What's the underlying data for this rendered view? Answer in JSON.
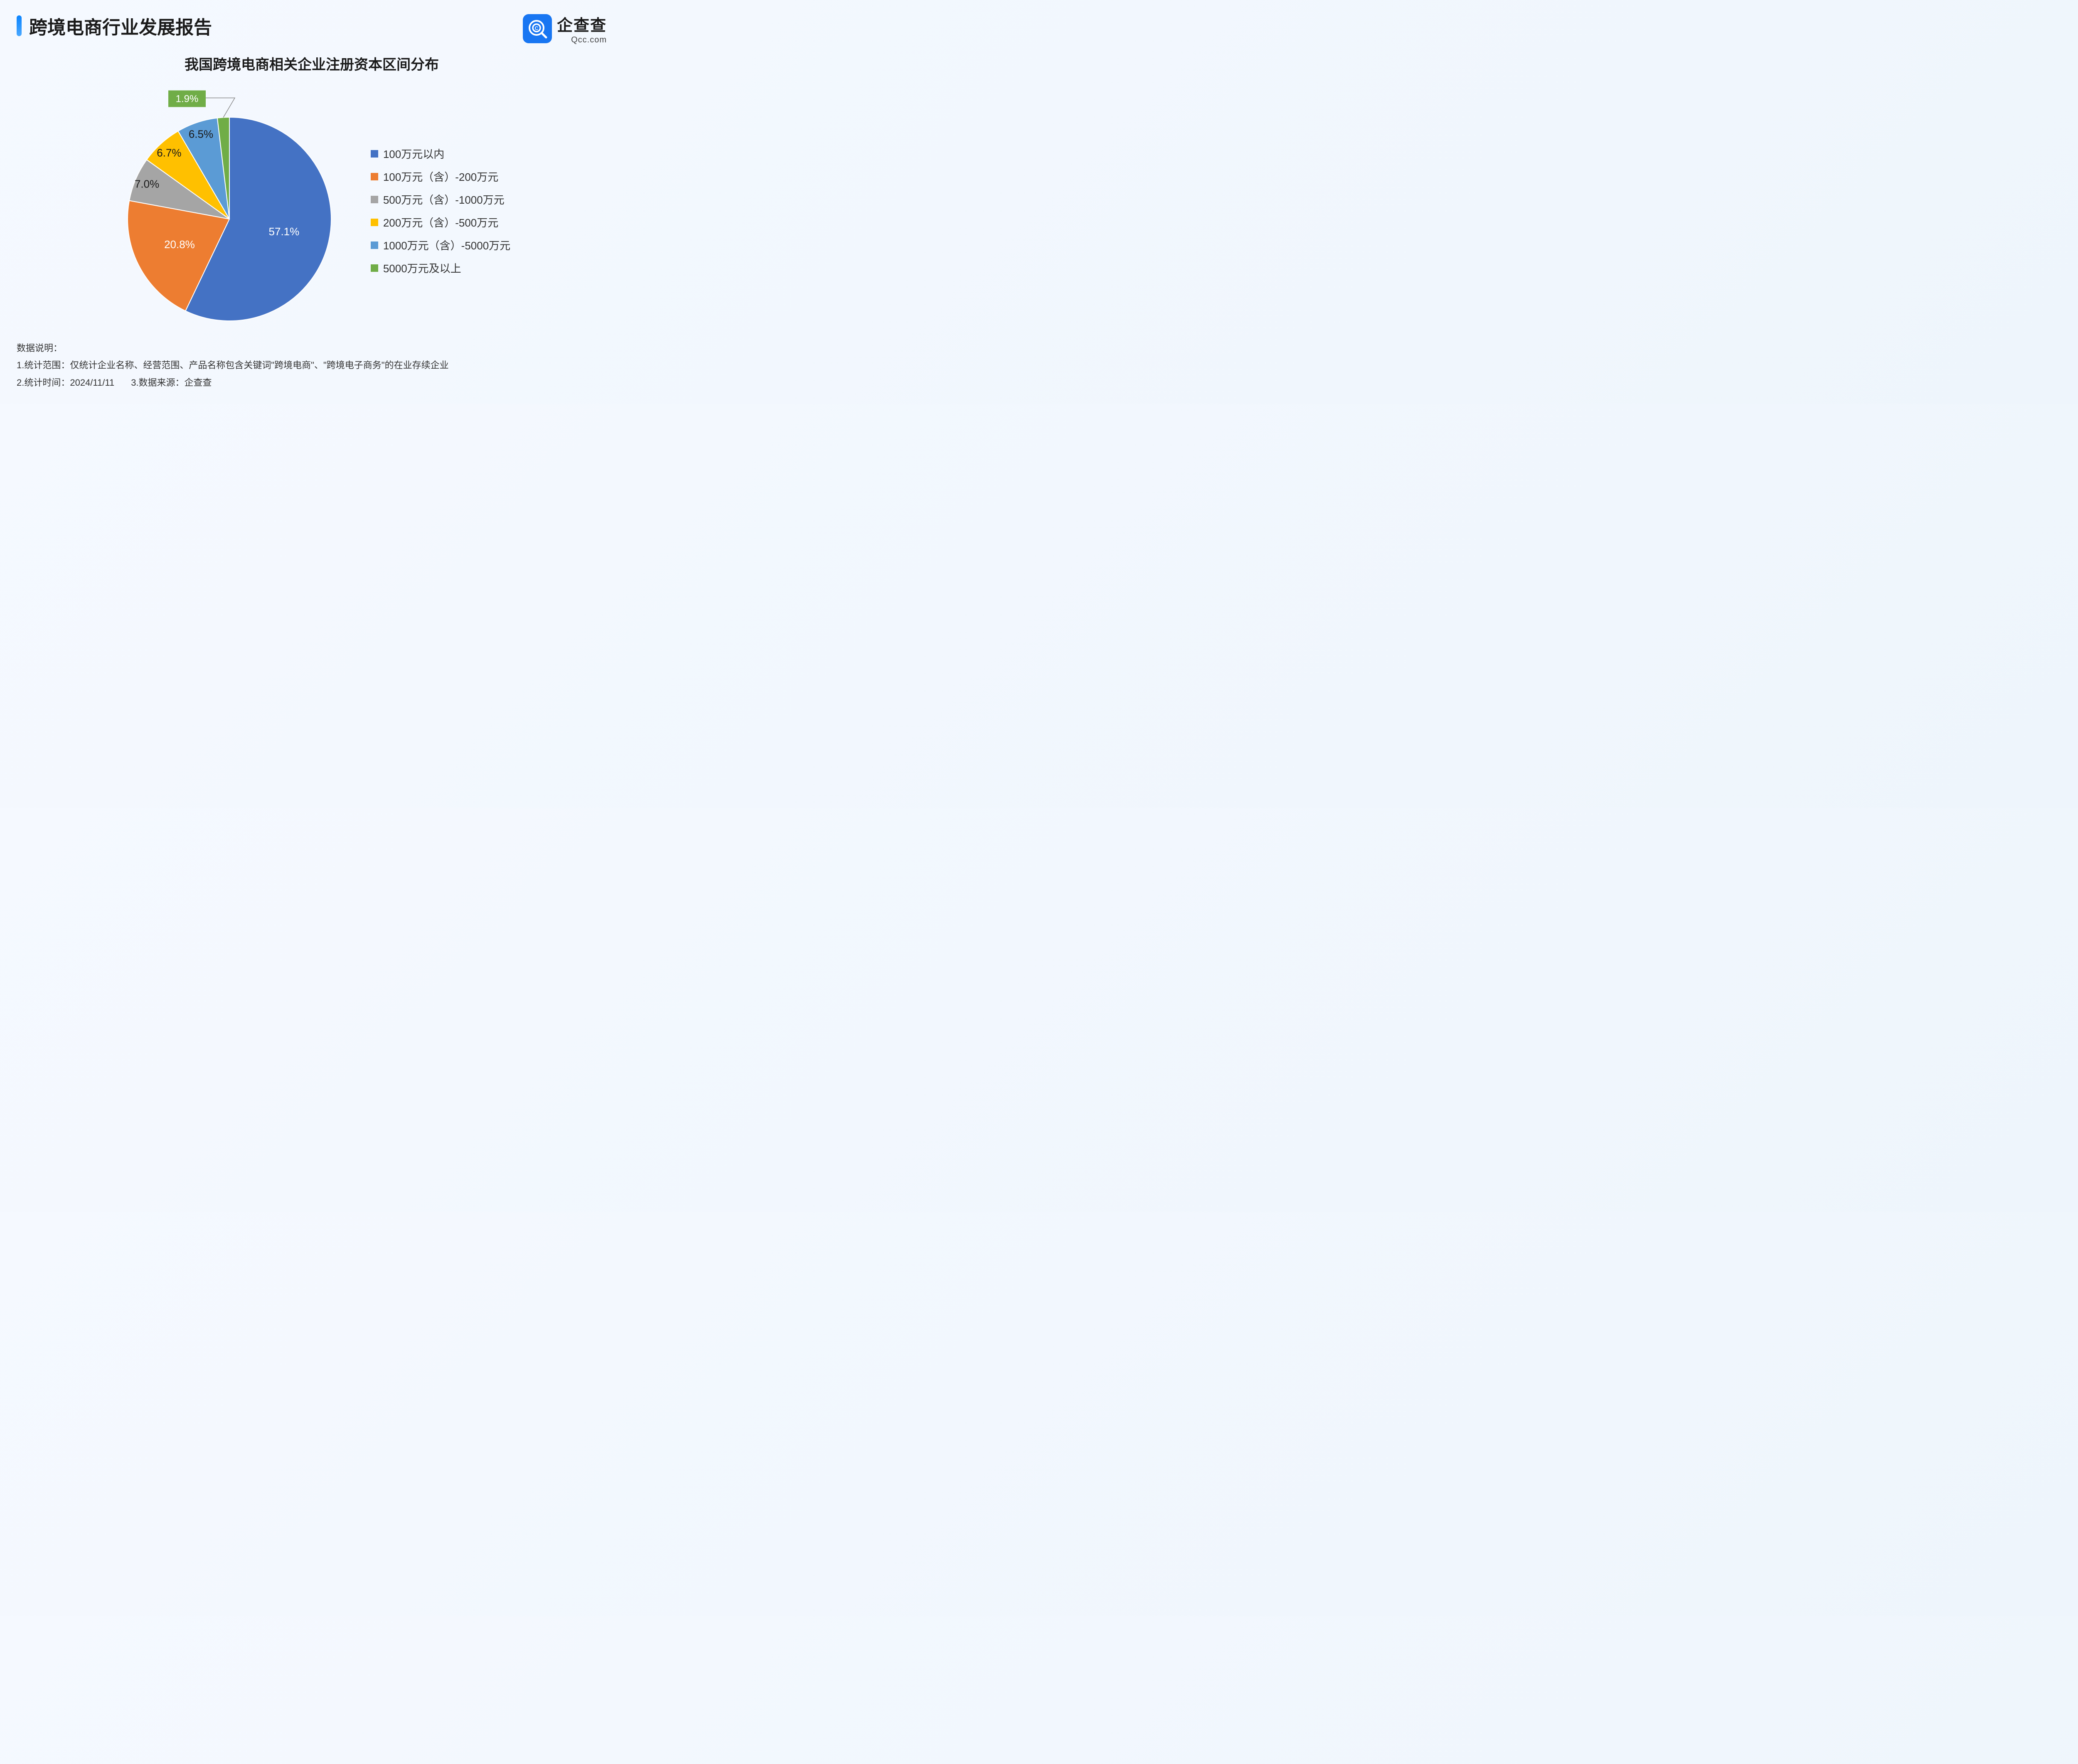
{
  "header": {
    "title": "跨境电商行业发展报告",
    "logo": {
      "cn": "企查查",
      "en": "Qcc.com"
    }
  },
  "chart": {
    "type": "pie",
    "title": "我国跨境电商相关企业注册资本区间分布",
    "background_color": "#f5f9ff",
    "title_fontsize": 34,
    "label_fontsize": 26,
    "legend_fontsize": 26,
    "slices": [
      {
        "label": "100万元以内",
        "value": 57.1,
        "display": "57.1%",
        "color": "#4472c4"
      },
      {
        "label": "100万元（含）-200万元",
        "value": 20.8,
        "display": "20.8%",
        "color": "#ed7d31"
      },
      {
        "label": "500万元（含）-1000万元",
        "value": 7.0,
        "display": "7.0%",
        "color": "#a5a5a5"
      },
      {
        "label": "200万元（含）-500万元",
        "value": 6.7,
        "display": "6.7%",
        "color": "#ffc000"
      },
      {
        "label": "1000万元（含）-5000万元",
        "value": 6.5,
        "display": "6.5%",
        "color": "#5b9bd5"
      },
      {
        "label": "5000万元及以上",
        "value": 1.9,
        "display": "1.9%",
        "color": "#70ad47"
      }
    ],
    "callout": {
      "slice_index": 5,
      "box_color": "#70ad47",
      "text_color": "#ffffff"
    }
  },
  "footer": {
    "heading": "数据说明：",
    "line1": "1.统计范围：仅统计企业名称、经营范围、产品名称包含关键词\"跨境电商\"、\"跨境电子商务\"的在业存续企业",
    "line2a": "2.统计时间：2024/11/11",
    "line2b": "3.数据来源：企查查"
  }
}
